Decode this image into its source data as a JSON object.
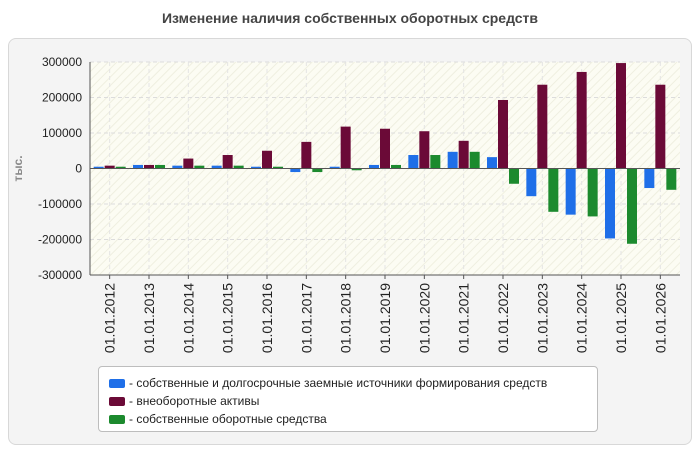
{
  "chart_data": {
    "type": "bar",
    "title": "Изменение наличия собственных оборотных средств",
    "ylabel": "тыс.",
    "xlabel": "",
    "ylim": [
      -300000,
      300000
    ],
    "yticks": [
      300000,
      200000,
      100000,
      0,
      -100000,
      -200000,
      -300000
    ],
    "ytick_labels": [
      "300000",
      "200000",
      "100000",
      "0",
      "-100000",
      "-200000",
      "-300000"
    ],
    "categories": [
      "01.01.2012",
      "01.01.2013",
      "01.01.2014",
      "01.01.2015",
      "01.01.2016",
      "01.01.2017",
      "01.01.2018",
      "01.01.2019",
      "01.01.2020",
      "01.01.2021",
      "01.01.2022",
      "01.01.2023",
      "01.01.2024",
      "01.01.2025",
      "01.01.2026"
    ],
    "series": [
      {
        "name": "- собственные и долгосрочные заемные источники формирования средств",
        "color": "#1f6fe8",
        "values": [
          5000,
          10000,
          8000,
          8000,
          5000,
          -10000,
          5000,
          10000,
          38000,
          47000,
          32000,
          -78000,
          -130000,
          -197000,
          -55000
        ]
      },
      {
        "name": "- внеоборотные активы",
        "color": "#6b0a37",
        "values": [
          8000,
          10000,
          28000,
          38000,
          50000,
          75000,
          118000,
          112000,
          105000,
          78000,
          193000,
          236000,
          272000,
          297000,
          236000
        ]
      },
      {
        "name": "- собственные оборотные средства",
        "color": "#1c8a2e",
        "values": [
          5000,
          10000,
          8000,
          8000,
          5000,
          -10000,
          -5000,
          10000,
          38000,
          47000,
          -43000,
          -122000,
          -135000,
          -212000,
          -60000
        ]
      }
    ],
    "grid": true,
    "legend_position": "bottom"
  }
}
